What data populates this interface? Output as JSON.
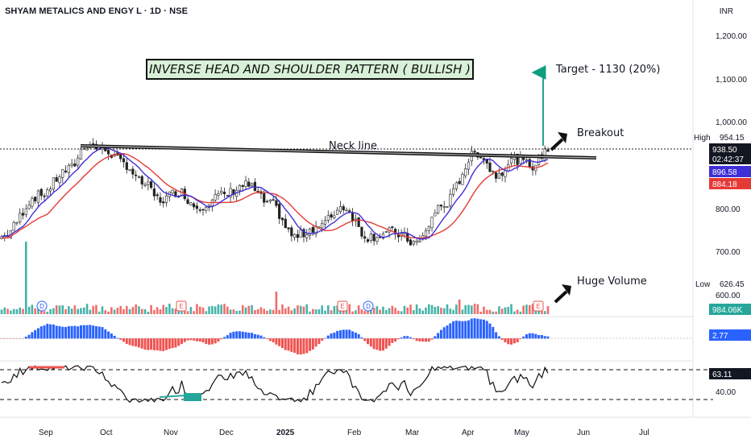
{
  "header": {
    "title": "SHYAM METALICS AND ENGY L · 1D · NSE",
    "currency": "INR"
  },
  "annotations": {
    "pattern_title": "INVERSE HEAD AND SHOULDER PATTERN ( BULLISH )",
    "neck_line": "Neck line",
    "target": "Target - 1130 (20%)",
    "breakout": "Breakout",
    "huge_volume": "Huge Volume"
  },
  "price_axis": {
    "ticks": [
      "1,200.00",
      "1,100.00",
      "1,000.00",
      "800.00",
      "700.00",
      "600.00"
    ],
    "high_label": "High",
    "high_value": "954.15",
    "low_label": "Low",
    "low_value": "626.45",
    "last_price": "938.50",
    "countdown": "02:42:37",
    "ma_fast_value": "896.58",
    "ma_slow_value": "884.18",
    "volume_value": "984.06K",
    "macd_value": "2.77",
    "rsi_value": "63.11",
    "rsi_tick": "40.00"
  },
  "time_axis": [
    "Sep",
    "Oct",
    "Nov",
    "Dec",
    "2025",
    "Feb",
    "Mar",
    "Apr",
    "May",
    "Jun",
    "Jul"
  ],
  "event_markers": [
    "D",
    "E",
    "E",
    "D",
    "E"
  ],
  "colors": {
    "up": "#26a69a",
    "down": "#ef5350",
    "ma_fast": "#3f2fd6",
    "ma_slow": "#e53935",
    "target_arrow": "#0f9d80",
    "box_bg": "#d8f0d8"
  },
  "chart_data": {
    "type": "candlestick",
    "title": "SHYAM METALICS AND ENGY L · 1D · NSE",
    "x_axis": [
      "Sep",
      "Oct",
      "Nov",
      "Dec",
      "2025",
      "Feb",
      "Mar",
      "Apr",
      "May",
      "Jun",
      "Jul"
    ],
    "y_unit": "INR",
    "y_ticks": [
      600,
      700,
      800,
      1000,
      1100,
      1200
    ],
    "close_path": [
      [
        "Aug",
        735
      ],
      [
        "Sep",
        830
      ],
      [
        "mid-Sep",
        890
      ],
      [
        "late-Sep",
        950
      ],
      [
        "Oct",
        935
      ],
      [
        "mid-Oct",
        905
      ],
      [
        "late-Oct",
        860
      ],
      [
        "Nov",
        820
      ],
      [
        "mid-Nov",
        840
      ],
      [
        "late-Nov",
        805
      ],
      [
        "Dec",
        830
      ],
      [
        "mid-Dec",
        855
      ],
      [
        "late-Dec",
        810
      ],
      [
        "2025",
        730
      ],
      [
        "mid-Jan",
        760
      ],
      [
        "Feb",
        805
      ],
      [
        "mid-Feb",
        730
      ],
      [
        "Mar",
        718
      ],
      [
        "mid-Mar",
        805
      ],
      [
        "Apr",
        930
      ],
      [
        "mid-Apr",
        880
      ],
      [
        "late-Apr",
        915
      ],
      [
        "May",
        900
      ],
      [
        "mid-May",
        938.5
      ]
    ],
    "high": 954.15,
    "low": 626.45,
    "last": 938.5,
    "ma_fast_last": 896.58,
    "ma_slow_last": 884.18,
    "volume_last": "984.06K",
    "macd_last": 2.77,
    "rsi_last": 63.11,
    "target": 1130,
    "target_pct": 20
  }
}
